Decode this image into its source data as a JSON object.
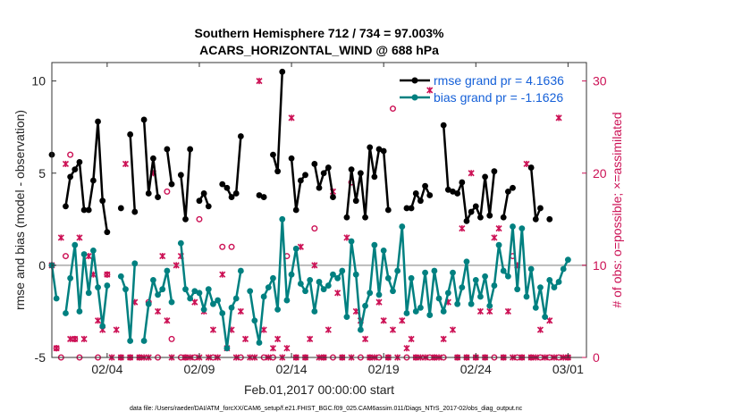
{
  "chart_data": {
    "type": "line",
    "title": "Southern Hemisphere 712 / 734 = 97.003%",
    "subtitle": "ACARS_HORIZONTAL_WIND @ 688 hPa",
    "xlabel": "Feb.01,2017 00:00:00 start",
    "ylabel": "rmse and bias (model - observation)",
    "y2label": "# of obs: o=possible; ×=assimilated",
    "footer": "data file: /Users/raeder/DAI/ATM_forcXX/CAM6_setup/f.e21.FHIST_BGC.f09_025.CAM6assim.011/Diags_NTrS_2017-02/obs_diag_output.nc",
    "xlim": [
      0,
      29
    ],
    "ylim": [
      -5,
      11
    ],
    "y2lim": [
      0,
      32
    ],
    "x_ticks": [
      {
        "x": 3,
        "label": "02/04"
      },
      {
        "x": 8,
        "label": "02/09"
      },
      {
        "x": 13,
        "label": "02/14"
      },
      {
        "x": 18,
        "label": "02/19"
      },
      {
        "x": 23,
        "label": "02/24"
      },
      {
        "x": 28,
        "label": "03/01"
      }
    ],
    "y_ticks": [
      -5,
      0,
      5,
      10
    ],
    "y2_ticks": [
      0,
      10,
      20,
      30
    ],
    "grid": false,
    "zero_line": true,
    "legend_position": "top-right",
    "colors": {
      "rmse": "#000000",
      "bias": "#008080",
      "count": "#cc1155",
      "legend_text": "#1560d8",
      "zero": "#bbbbbb"
    },
    "series": [
      {
        "name": "rmse grand pr = 4.1636",
        "axis": "left",
        "x": [
          0.0,
          0.75,
          1.0,
          1.25,
          1.5,
          1.75,
          2.0,
          2.25,
          2.5,
          2.75,
          3.0,
          3.75,
          4.25,
          4.5,
          5.0,
          5.25,
          5.5,
          5.75,
          6.25,
          6.5,
          7.0,
          7.25,
          7.5,
          8.0,
          8.25,
          8.5,
          9.25,
          9.5,
          9.75,
          10.0,
          10.25,
          11.25,
          11.5,
          12.0,
          12.25,
          12.5,
          13.0,
          13.25,
          13.5,
          13.75,
          14.25,
          14.5,
          14.75,
          15.0,
          15.25,
          16.0,
          16.25,
          16.5,
          16.75,
          17.0,
          17.25,
          17.5,
          17.75,
          18.0,
          18.25,
          19.25,
          19.5,
          19.75,
          20.0,
          20.25,
          20.5,
          21.25,
          21.5,
          21.75,
          22.0,
          22.25,
          22.5,
          22.75,
          23.0,
          23.25,
          23.5,
          23.75,
          24.0,
          24.5,
          24.75,
          25.0,
          26.0,
          26.25,
          26.5,
          27.0
        ],
        "values": [
          6.0,
          3.2,
          4.8,
          5.2,
          5.6,
          3.0,
          3.0,
          4.6,
          7.8,
          3.5,
          1.8,
          3.1,
          7.1,
          2.9,
          7.9,
          3.9,
          5.8,
          3.7,
          6.3,
          4.4,
          4.9,
          2.5,
          6.3,
          3.5,
          3.9,
          3.2,
          4.4,
          4.2,
          3.7,
          3.9,
          7.0,
          3.8,
          3.7,
          6.0,
          5.1,
          10.5,
          5.8,
          3.0,
          4.6,
          4.9,
          5.5,
          4.2,
          5.0,
          5.3,
          3.7,
          2.6,
          5.2,
          3.5,
          5.0,
          2.6,
          6.4,
          4.8,
          6.3,
          6.2,
          3.0,
          3.1,
          3.1,
          3.9,
          3.5,
          4.3,
          3.8,
          7.6,
          4.1,
          4.0,
          3.9,
          4.5,
          2.4,
          2.9,
          3.2,
          2.6,
          4.8,
          2.7,
          5.1,
          2.6,
          4.0,
          4.2,
          5.3,
          2.5,
          3.1,
          2.5
        ]
      },
      {
        "name": "bias grand pr = -1.1626",
        "axis": "left",
        "x": [
          0.0,
          0.25,
          0.75,
          1.0,
          1.25,
          1.5,
          1.75,
          2.0,
          2.25,
          2.5,
          2.75,
          3.0,
          3.75,
          4.0,
          4.25,
          4.5,
          5.0,
          5.25,
          5.5,
          5.75,
          6.0,
          6.25,
          6.5,
          7.0,
          7.25,
          7.5,
          7.75,
          8.0,
          8.25,
          8.5,
          8.75,
          9.0,
          9.25,
          9.5,
          9.75,
          10.0,
          10.25,
          10.75,
          11.0,
          11.25,
          11.5,
          11.75,
          12.0,
          12.25,
          12.5,
          12.75,
          13.0,
          13.25,
          13.5,
          13.75,
          14.0,
          14.25,
          14.5,
          14.75,
          15.0,
          15.25,
          15.5,
          15.75,
          16.0,
          16.25,
          16.5,
          16.75,
          17.0,
          17.25,
          17.5,
          17.75,
          18.0,
          18.25,
          18.5,
          18.75,
          19.0,
          19.25,
          19.5,
          19.75,
          20.0,
          20.25,
          20.5,
          20.75,
          21.0,
          21.25,
          21.5,
          21.75,
          22.0,
          22.25,
          22.5,
          22.75,
          23.0,
          23.25,
          23.5,
          23.75,
          24.0,
          24.25,
          24.5,
          24.75,
          25.0,
          25.25,
          25.5,
          25.75,
          26.0,
          26.25,
          26.5,
          26.75,
          27.0,
          27.25,
          27.5,
          27.75,
          28.0
        ],
        "values": [
          0.0,
          -1.8,
          -2.6,
          -0.7,
          1.1,
          -2.5,
          0.6,
          -1.5,
          0.8,
          -1.2,
          -3.3,
          -1.1,
          -0.6,
          -1.3,
          -4.1,
          0.1,
          -4.1,
          -2.1,
          -0.8,
          -1.6,
          -1.3,
          -0.3,
          -2.0,
          1.2,
          -1.3,
          -1.8,
          -1.4,
          -1.5,
          -2.4,
          -1.3,
          -2.1,
          -1.9,
          -2.6,
          -4.5,
          -2.3,
          -1.8,
          -0.3,
          -1.4,
          -3.0,
          -4.2,
          -1.7,
          -1.2,
          -0.7,
          -2.4,
          2.5,
          -1.9,
          -0.5,
          0.9,
          -1.0,
          -1.4,
          -0.8,
          -2.5,
          -0.9,
          -1.3,
          -1.1,
          -0.5,
          -0.7,
          -0.3,
          -2.8,
          1.3,
          -0.5,
          -3.5,
          -2.2,
          -1.5,
          1.1,
          -1.6,
          0.8,
          -0.7,
          -1.4,
          -0.3,
          2.1,
          -2.6,
          -0.7,
          -2.5,
          -2.3,
          -0.4,
          -2.7,
          -0.3,
          -1.8,
          -2.5,
          -1.5,
          -0.4,
          -2.1,
          -1.2,
          0.2,
          -2.1,
          -0.8,
          -1.7,
          -0.6,
          -2.2,
          -1.1,
          1.1,
          -0.3,
          -0.6,
          2.1,
          -1.3,
          2.0,
          -1.7,
          -0.2,
          -2.3,
          -1.2,
          -2.8,
          -0.8,
          -1.2,
          -0.9,
          -0.2,
          0.3
        ]
      },
      {
        "name": "possible",
        "axis": "right",
        "x": [
          0.0,
          0.25,
          0.5,
          0.75,
          1.0,
          1.25,
          1.5,
          2.5,
          3.0,
          3.75,
          4.25,
          4.75,
          5.25,
          5.75,
          6.25,
          6.5,
          7.0,
          7.25,
          7.75,
          8.0,
          8.75,
          9.25,
          9.75,
          10.25,
          11.5,
          12.0,
          12.75,
          13.25,
          13.75,
          14.25,
          14.75,
          15.25,
          15.75,
          16.25,
          16.75,
          17.25,
          17.75,
          18.25,
          18.5,
          19.25,
          19.75,
          20.5,
          20.75,
          21.25,
          22.0,
          22.5,
          23.0,
          23.5,
          24.0,
          24.5,
          25.0,
          25.25,
          25.5,
          26.0,
          26.5,
          27.0,
          27.5,
          28.0
        ],
        "values": [
          10,
          1,
          0,
          11,
          22,
          2,
          0,
          0,
          9,
          0,
          0,
          0,
          6,
          0,
          18,
          2,
          0,
          0,
          0,
          15,
          0,
          12,
          12,
          0,
          0,
          0,
          11,
          0,
          0,
          14,
          0,
          0,
          0,
          19,
          0,
          0,
          0,
          0,
          27,
          0,
          0,
          0,
          0,
          0,
          0,
          0,
          0,
          0,
          0,
          0,
          11,
          0,
          0,
          0,
          0,
          0,
          0,
          0
        ]
      },
      {
        "name": "assimilated",
        "axis": "right",
        "x": [
          0.0,
          0.25,
          0.5,
          0.75,
          1.0,
          1.25,
          1.5,
          1.75,
          2.0,
          2.25,
          2.5,
          2.75,
          3.0,
          3.25,
          3.5,
          3.75,
          4.0,
          4.25,
          4.5,
          4.75,
          5.0,
          5.25,
          5.5,
          5.75,
          6.0,
          6.25,
          6.5,
          6.75,
          7.0,
          7.25,
          7.5,
          7.75,
          8.0,
          8.25,
          8.5,
          8.75,
          9.0,
          9.25,
          9.5,
          9.75,
          10.0,
          10.25,
          10.5,
          10.75,
          11.0,
          11.25,
          11.5,
          11.75,
          12.0,
          12.25,
          12.5,
          12.75,
          13.0,
          13.25,
          13.5,
          13.75,
          14.0,
          14.25,
          14.5,
          14.75,
          15.0,
          15.25,
          15.5,
          15.75,
          16.0,
          16.25,
          16.5,
          16.75,
          17.0,
          17.25,
          17.5,
          17.75,
          18.0,
          18.25,
          18.5,
          18.75,
          19.0,
          19.25,
          19.5,
          19.75,
          20.0,
          20.25,
          20.5,
          20.75,
          21.0,
          21.25,
          21.5,
          21.75,
          22.0,
          22.25,
          22.5,
          22.75,
          23.0,
          23.25,
          23.5,
          23.75,
          24.0,
          24.25,
          24.5,
          24.75,
          25.0,
          25.25,
          25.5,
          25.75,
          26.0,
          26.25,
          26.5,
          26.75,
          27.0,
          27.25,
          27.5,
          27.75,
          28.0
        ],
        "values": [
          10,
          1,
          13,
          21,
          2,
          2,
          13,
          2,
          11,
          9,
          4,
          3,
          9,
          0,
          3,
          0,
          21,
          0,
          6,
          0,
          0,
          0,
          20,
          5,
          11,
          4,
          0,
          10,
          11,
          0,
          0,
          6,
          0,
          5,
          0,
          3,
          0,
          9,
          1,
          3,
          0,
          5,
          2,
          0,
          0,
          30,
          3,
          0,
          1,
          2,
          0,
          1,
          26,
          0,
          12,
          0,
          2,
          10,
          0,
          0,
          3,
          18,
          7,
          0,
          13,
          0,
          5,
          4,
          2,
          0,
          0,
          6,
          4,
          0,
          3,
          0,
          4,
          1,
          2,
          0,
          0,
          0,
          29,
          0,
          0,
          2,
          6,
          3,
          0,
          14,
          0,
          20,
          0,
          5,
          0,
          5,
          13,
          14,
          0,
          5,
          0,
          10,
          0,
          21,
          0,
          0,
          3,
          0,
          4,
          0,
          26,
          0,
          0
        ]
      }
    ]
  }
}
